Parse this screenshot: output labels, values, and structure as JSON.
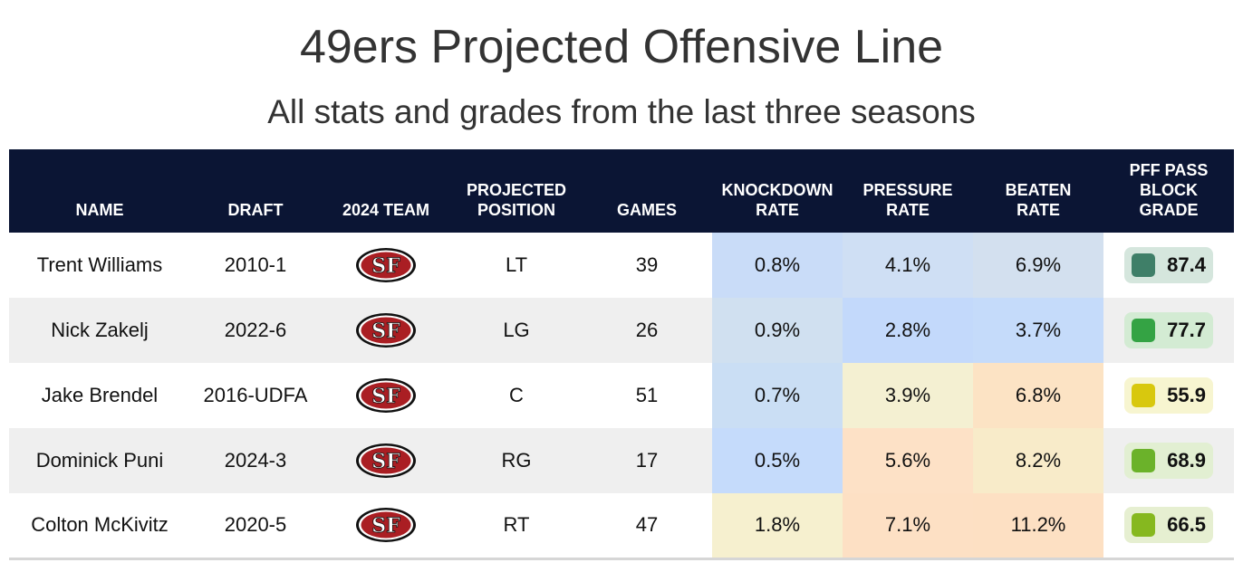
{
  "title": "49ers Projected Offensive Line",
  "subtitle": "All stats and grades from the last three seasons",
  "headers": {
    "name": "NAME",
    "draft": "DRAFT",
    "team": "2024 TEAM",
    "position_l1": "PROJECTED",
    "position_l2": "POSITION",
    "games": "GAMES",
    "knockdown_l1": "KNOCKDOWN",
    "knockdown_l2": "RATE",
    "pressure_l1": "PRESSURE",
    "pressure_l2": "RATE",
    "beaten_l1": "BEATEN",
    "beaten_l2": "RATE",
    "grade_l1": "PFF PASS",
    "grade_l2": "BLOCK",
    "grade_l3": "GRADE"
  },
  "team_logo": "49ers-sf-logo",
  "chart_data": {
    "type": "table",
    "title": "49ers Projected Offensive Line",
    "subtitle": "All stats and grades from the last three seasons",
    "columns": [
      "NAME",
      "DRAFT",
      "2024 TEAM",
      "PROJECTED POSITION",
      "GAMES",
      "KNOCKDOWN RATE",
      "PRESSURE RATE",
      "BEATEN RATE",
      "PFF PASS BLOCK GRADE"
    ],
    "rows": [
      {
        "name": "Trent Williams",
        "draft": "2010-1",
        "position": "LT",
        "games": "39",
        "knockdown": "0.8%",
        "pressure": "4.1%",
        "beaten": "6.9%",
        "grade": "87.4",
        "colors": {
          "knockdown": "#c9dcf8",
          "pressure": "#cfdff4",
          "beaten": "#d3e0ef",
          "grade_bg": "#d5e6dd",
          "grade_dot": "#3f7f68"
        }
      },
      {
        "name": "Nick Zakelj",
        "draft": "2022-6",
        "position": "LG",
        "games": "26",
        "knockdown": "0.9%",
        "pressure": "2.8%",
        "beaten": "3.7%",
        "grade": "77.7",
        "colors": {
          "knockdown": "#d0e0f0",
          "pressure": "#c3d9fb",
          "beaten": "#c5dbfa",
          "grade_bg": "#d3ebd3",
          "grade_dot": "#34a344"
        }
      },
      {
        "name": "Jake Brendel",
        "draft": "2016-UDFA",
        "position": "C",
        "games": "51",
        "knockdown": "0.7%",
        "pressure": "3.9%",
        "beaten": "6.8%",
        "grade": "55.9",
        "colors": {
          "knockdown": "#cadef4",
          "pressure": "#f4f0d2",
          "beaten": "#fce3c4",
          "grade_bg": "#f7f5d0",
          "grade_dot": "#d8c80e"
        }
      },
      {
        "name": "Dominick Puni",
        "draft": "2024-3",
        "position": "RG",
        "games": "17",
        "knockdown": "0.5%",
        "pressure": "5.6%",
        "beaten": "8.2%",
        "grade": "68.9",
        "colors": {
          "knockdown": "#c5dbfb",
          "pressure": "#fde1c6",
          "beaten": "#f8ebc9",
          "grade_bg": "#e2efd2",
          "grade_dot": "#6bb22a"
        }
      },
      {
        "name": "Colton McKivitz",
        "draft": "2020-5",
        "position": "RT",
        "games": "47",
        "knockdown": "1.8%",
        "pressure": "7.1%",
        "beaten": "11.2%",
        "grade": "66.5",
        "colors": {
          "knockdown": "#f6f0cf",
          "pressure": "#fde0c4",
          "beaten": "#fde0c3",
          "grade_bg": "#e6efd1",
          "grade_dot": "#86b81f"
        }
      }
    ]
  }
}
